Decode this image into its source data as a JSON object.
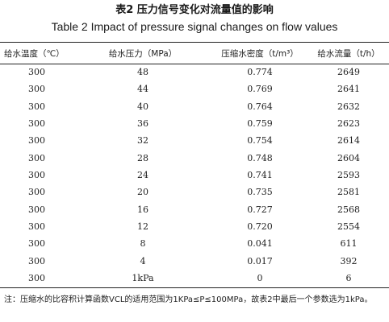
{
  "caption": {
    "cn": "表2   压力信号变化对流量值的影响",
    "en": "Table 2    Impact of pressure signal changes on flow values"
  },
  "table": {
    "headers": [
      "给水温度（℃）",
      "给水压力（MPa）",
      "压缩水密度（t/m³）",
      "给水流量（t/h）"
    ],
    "rows": [
      [
        "300",
        "48",
        "0.774",
        "2649"
      ],
      [
        "300",
        "44",
        "0.769",
        "2641"
      ],
      [
        "300",
        "40",
        "0.764",
        "2632"
      ],
      [
        "300",
        "36",
        "0.759",
        "2623"
      ],
      [
        "300",
        "32",
        "0.754",
        "2614"
      ],
      [
        "300",
        "28",
        "0.748",
        "2604"
      ],
      [
        "300",
        "24",
        "0.741",
        "2593"
      ],
      [
        "300",
        "20",
        "0.735",
        "2581"
      ],
      [
        "300",
        "16",
        "0.727",
        "2568"
      ],
      [
        "300",
        "12",
        "0.720",
        "2554"
      ],
      [
        "300",
        "8",
        "0.041",
        "611"
      ],
      [
        "300",
        "4",
        "0.017",
        "392"
      ],
      [
        "300",
        "1kPa",
        "0",
        "6"
      ]
    ]
  },
  "note": "注：压缩水的比容积计算函数VCL的适用范围为1KPa≤P≤100MPa，故表2中最后一个参数选为1kPa。"
}
